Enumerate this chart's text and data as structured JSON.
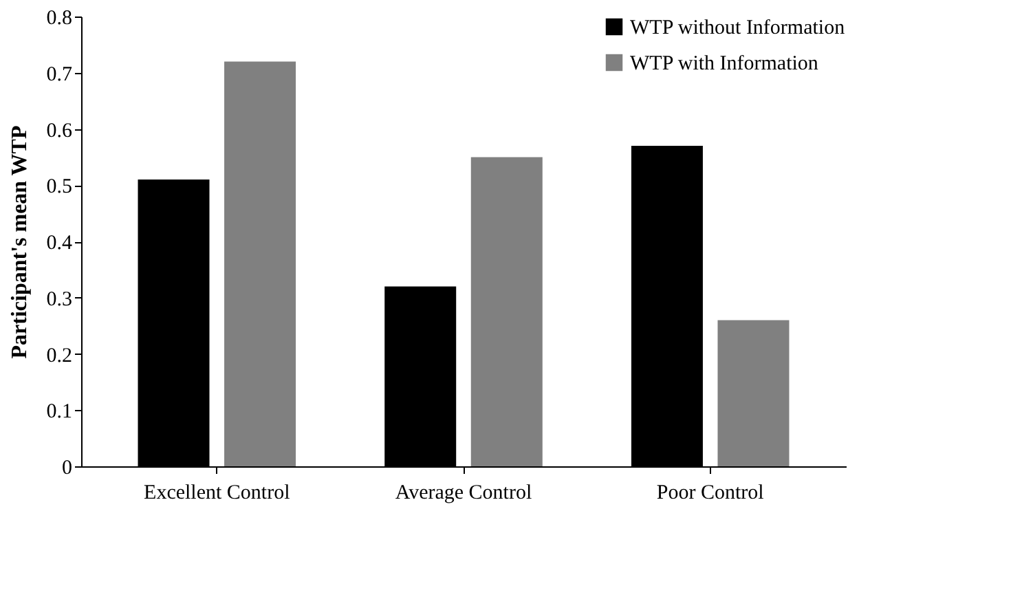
{
  "chart_data": {
    "type": "bar",
    "ylabel": "Participant's mean WTP",
    "categories": [
      "Excellent Control",
      "Average Control",
      "Poor Control"
    ],
    "series": [
      {
        "name": "WTP without Information",
        "color": "#000000",
        "values": [
          0.51,
          0.32,
          0.57
        ]
      },
      {
        "name": "WTP with Information",
        "color": "#808080",
        "values": [
          0.72,
          0.55,
          0.26
        ]
      }
    ],
    "ylim": [
      0,
      0.8
    ],
    "yticks": [
      0,
      0.1,
      0.2,
      0.3,
      0.4,
      0.5,
      0.6,
      0.7,
      0.8
    ],
    "grid": false,
    "legend": "top right"
  }
}
